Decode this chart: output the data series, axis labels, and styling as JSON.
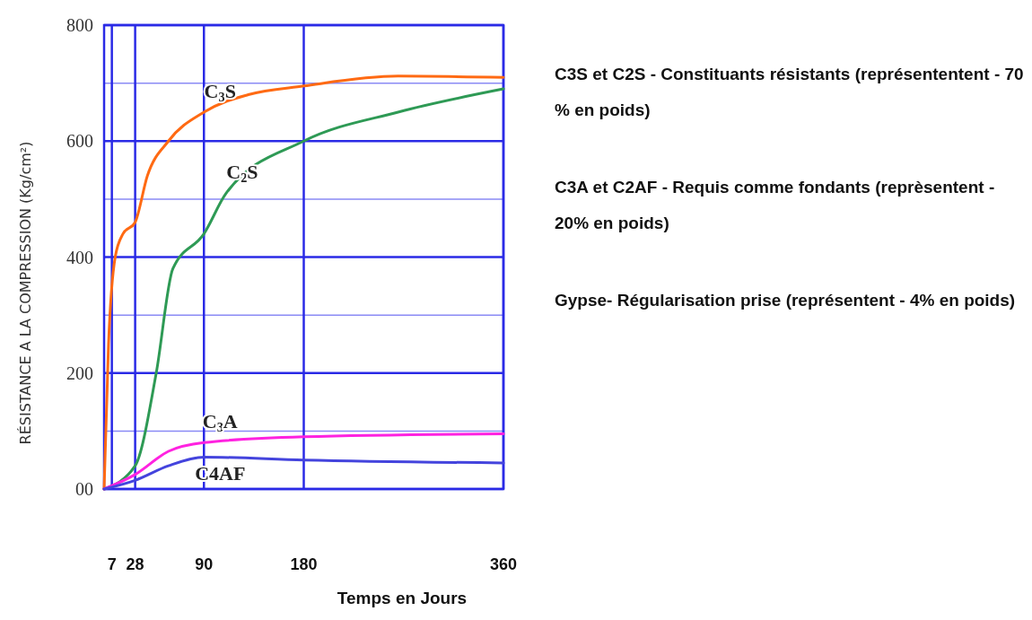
{
  "chart_data": {
    "type": "line",
    "xlabel": "Temps en Jours",
    "ylabel": "RÉSISTANCE A LA COMPRESSION (Kg/cm²)",
    "xlim": [
      0,
      360
    ],
    "xticks": [
      7,
      28,
      90,
      180,
      360
    ],
    "ylim": [
      0,
      800
    ],
    "yticks": [
      {
        "value": 0,
        "label": "00"
      },
      {
        "value": 100,
        "label": null
      },
      200,
      {
        "value": 300,
        "label": null
      },
      400,
      {
        "value": 500,
        "label": null
      },
      600,
      {
        "value": 700,
        "label": null
      },
      800
    ],
    "grid": true,
    "line_style": "solid",
    "marker": "none",
    "series": [
      {
        "name": "C$_{3}$S",
        "color": "#ff6a13",
        "x": [
          0,
          4,
          10,
          17,
          28,
          39,
          58,
          90,
          130,
          180,
          265,
          360
        ],
        "values": [
          0,
          250,
          400,
          440,
          460,
          540,
          600,
          650,
          680,
          695,
          712,
          710
        ]
      },
      {
        "name": "C$_{2}$S",
        "color": "#2e9a55",
        "x": [
          0,
          28,
          47,
          62,
          90,
          110,
          180,
          265,
          360
        ],
        "values": [
          0,
          40,
          200,
          380,
          440,
          510,
          600,
          650,
          690
        ]
      },
      {
        "name": "C$_{3}$A",
        "color": "#ff22e0",
        "x": [
          0,
          28,
          58,
          90,
          180,
          360
        ],
        "values": [
          0,
          25,
          65,
          80,
          90,
          95
        ]
      },
      {
        "name": "C4AF",
        "color": "#4444dd",
        "x": [
          0,
          28,
          58,
          90,
          180,
          360
        ],
        "values": [
          0,
          15,
          40,
          55,
          50,
          45
        ]
      }
    ],
    "annotations": [
      "C3S et C2S - Constituants résistants (représententent - 70 % en poids)",
      "C3A et C2AF - Requis comme fondants (reprèsentent - 20% en poids)",
      "Gypse- Régularisation prise (représentent - 4% en poids)"
    ]
  }
}
